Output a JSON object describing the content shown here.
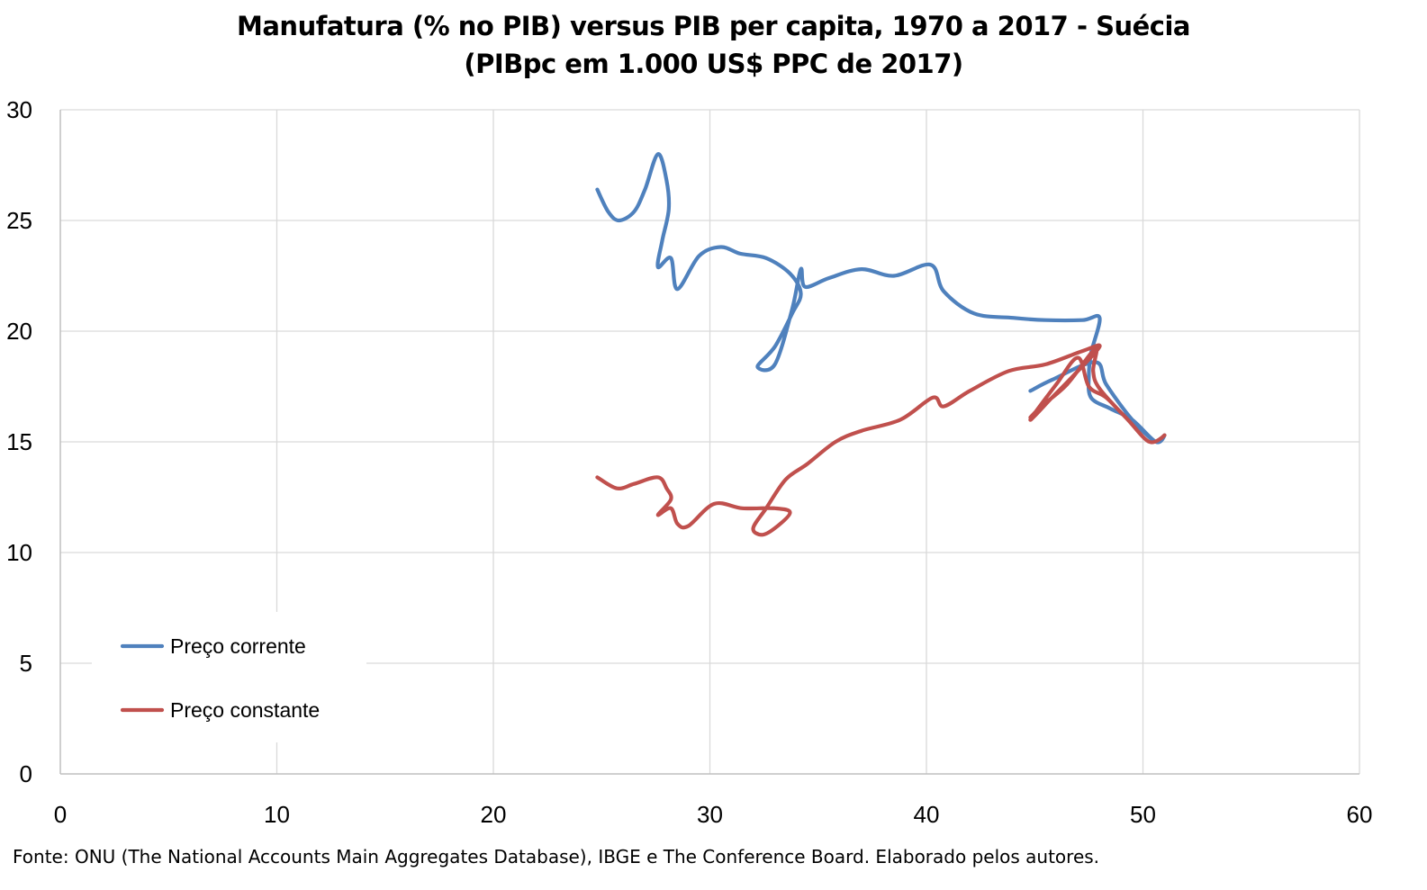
{
  "chart_data": {
    "type": "line",
    "title": "Manufatura (% no PIB) versus PIB per capita, 1970 a 2017 - Suécia",
    "subtitle": "(PIBpc em 1.000 US$ PPC de 2017)",
    "xlabel": "",
    "ylabel": "",
    "xlim": [
      0,
      60
    ],
    "ylim": [
      0,
      30
    ],
    "x_ticks": [
      "0",
      "10",
      "20",
      "30",
      "40",
      "50",
      "60"
    ],
    "y_ticks": [
      "0",
      "5",
      "10",
      "15",
      "20",
      "25",
      "30"
    ],
    "grid": true,
    "legend_position": "bottom-left",
    "series": [
      {
        "name": "Preço corrente",
        "color": "#4f81bd",
        "points": [
          [
            24.8,
            26.4
          ],
          [
            25.3,
            25.4
          ],
          [
            25.8,
            25.0
          ],
          [
            26.5,
            25.4
          ],
          [
            27.0,
            26.4
          ],
          [
            27.6,
            28.0
          ],
          [
            28.0,
            26.8
          ],
          [
            28.1,
            25.5
          ],
          [
            27.8,
            24.1
          ],
          [
            27.6,
            22.9
          ],
          [
            28.2,
            23.3
          ],
          [
            28.5,
            21.9
          ],
          [
            29.5,
            23.4
          ],
          [
            30.5,
            23.8
          ],
          [
            31.4,
            23.5
          ],
          [
            32.6,
            23.3
          ],
          [
            33.7,
            22.6
          ],
          [
            34.2,
            21.7
          ],
          [
            33.8,
            20.8
          ],
          [
            33.0,
            19.3
          ],
          [
            32.2,
            18.4
          ],
          [
            33.0,
            18.5
          ],
          [
            33.8,
            21.0
          ],
          [
            34.2,
            22.8
          ],
          [
            34.4,
            22.0
          ],
          [
            35.5,
            22.4
          ],
          [
            37.0,
            22.8
          ],
          [
            38.5,
            22.5
          ],
          [
            40.2,
            23.0
          ],
          [
            40.8,
            21.8
          ],
          [
            42.2,
            20.8
          ],
          [
            44.0,
            20.6
          ],
          [
            45.5,
            20.5
          ],
          [
            47.2,
            20.5
          ],
          [
            48.0,
            20.6
          ],
          [
            47.6,
            19.0
          ],
          [
            47.5,
            18.0
          ],
          [
            47.6,
            17.0
          ],
          [
            48.5,
            16.5
          ],
          [
            49.5,
            16.0
          ],
          [
            50.6,
            15.0
          ],
          [
            51.0,
            15.3
          ],
          [
            50.6,
            15.0
          ],
          [
            49.5,
            16.0
          ],
          [
            48.3,
            17.6
          ],
          [
            47.8,
            18.6
          ],
          [
            45.8,
            17.8
          ],
          [
            44.8,
            17.3
          ]
        ]
      },
      {
        "name": "Preço constante",
        "color": "#c0504d",
        "points": [
          [
            24.8,
            13.4
          ],
          [
            25.7,
            12.9
          ],
          [
            26.5,
            13.1
          ],
          [
            27.6,
            13.4
          ],
          [
            28.0,
            12.9
          ],
          [
            28.2,
            12.4
          ],
          [
            27.6,
            11.7
          ],
          [
            28.2,
            12.0
          ],
          [
            28.5,
            11.3
          ],
          [
            29.0,
            11.2
          ],
          [
            30.2,
            12.2
          ],
          [
            31.5,
            12.0
          ],
          [
            33.0,
            12.0
          ],
          [
            33.7,
            11.8
          ],
          [
            33.0,
            11.1
          ],
          [
            32.4,
            10.8
          ],
          [
            32.0,
            11.1
          ],
          [
            32.6,
            12.0
          ],
          [
            33.5,
            13.3
          ],
          [
            34.5,
            14.0
          ],
          [
            35.8,
            15.0
          ],
          [
            37.0,
            15.5
          ],
          [
            38.8,
            16.0
          ],
          [
            40.3,
            17.0
          ],
          [
            40.8,
            16.6
          ],
          [
            42.0,
            17.3
          ],
          [
            43.8,
            18.2
          ],
          [
            45.5,
            18.5
          ],
          [
            47.2,
            19.1
          ],
          [
            48.0,
            19.3
          ],
          [
            46.8,
            18.0
          ],
          [
            45.8,
            17.0
          ],
          [
            44.8,
            16.0
          ],
          [
            46.0,
            17.6
          ],
          [
            47.0,
            18.8
          ],
          [
            47.5,
            17.5
          ],
          [
            48.3,
            17.0
          ],
          [
            49.3,
            16.0
          ],
          [
            50.3,
            15.0
          ],
          [
            51.0,
            15.3
          ],
          [
            50.3,
            15.0
          ],
          [
            49.3,
            16.0
          ],
          [
            48.0,
            17.4
          ],
          [
            47.7,
            18.2
          ],
          [
            47.8,
            19.2
          ],
          [
            46.5,
            17.6
          ],
          [
            45.3,
            16.6
          ],
          [
            44.8,
            16.1
          ]
        ]
      }
    ]
  },
  "source_note": "Fonte: ONU (The National Accounts Main Aggregates Database), IBGE e The Conference Board. Elaborado pelos autores."
}
